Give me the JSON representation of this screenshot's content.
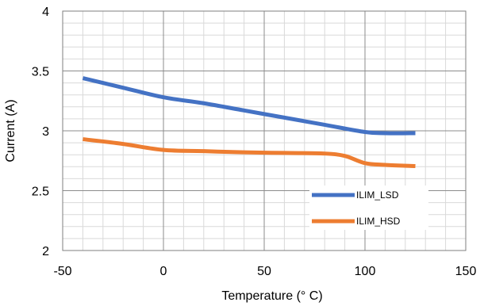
{
  "chart_data": {
    "type": "line",
    "xlabel": "Temperature (° C)",
    "ylabel": "Current (A)",
    "xlim": [
      -50,
      150
    ],
    "ylim": [
      2,
      4
    ],
    "x_ticks": [
      "-50",
      "0",
      "50",
      "100",
      "150"
    ],
    "y_ticks": [
      "2",
      "2.5",
      "3",
      "3.5",
      "4"
    ],
    "x_major_step": 50,
    "x_minor_step": 10,
    "y_major_step": 0.5,
    "y_minor_step": 0.1,
    "grid": true,
    "legend_position": "bottom-right",
    "series": [
      {
        "name": "ILIM_LSD",
        "color": "#4472C4",
        "x": [
          -40,
          -20,
          0,
          20,
          40,
          60,
          80,
          100,
          110,
          125
        ],
        "y": [
          3.44,
          3.36,
          3.28,
          3.23,
          3.17,
          3.11,
          3.05,
          2.99,
          2.98,
          2.98
        ]
      },
      {
        "name": "ILIM_HSD",
        "color": "#ED7D31",
        "x": [
          -40,
          -20,
          0,
          20,
          40,
          60,
          80,
          90,
          100,
          110,
          125
        ],
        "y": [
          2.93,
          2.89,
          2.84,
          2.83,
          2.82,
          2.815,
          2.81,
          2.79,
          2.73,
          2.715,
          2.705
        ]
      }
    ]
  }
}
